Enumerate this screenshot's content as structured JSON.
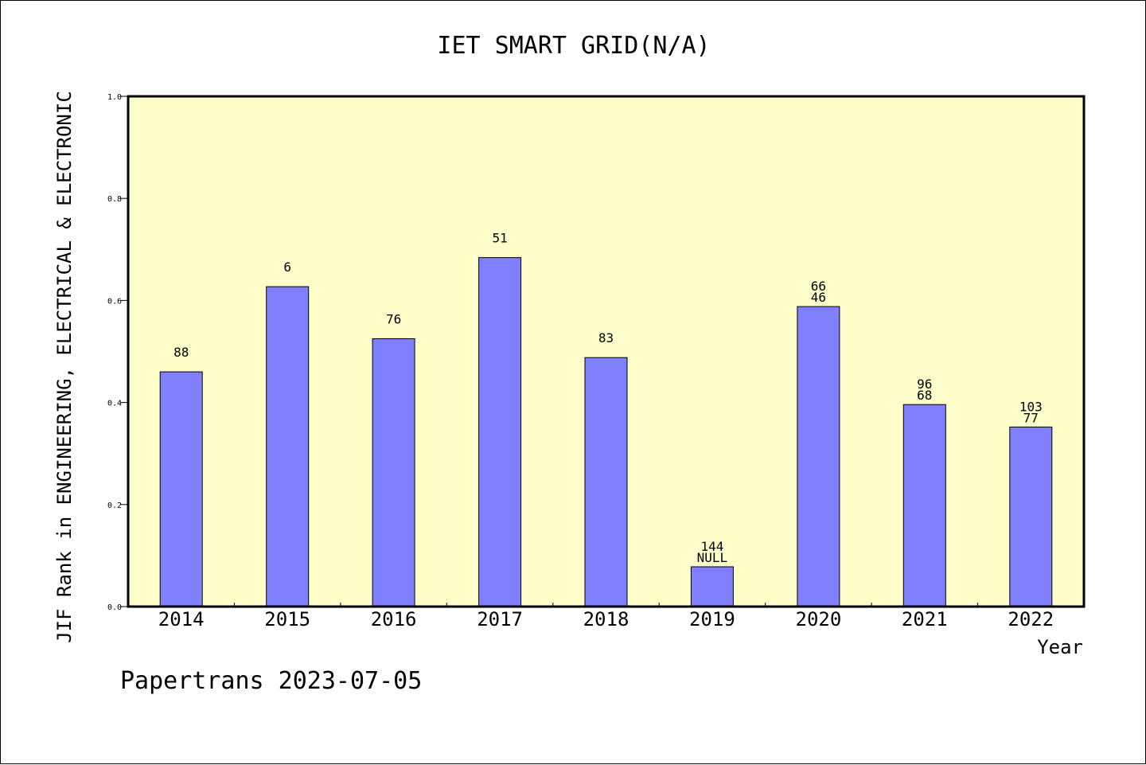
{
  "chart_data": {
    "type": "bar",
    "title": "IET SMART GRID(N/A)",
    "ylabel": "JIF Rank in ENGINEERING, ELECTRICAL & ELECTRONIC",
    "xlabel": "Year",
    "footer": "Papertrans 2023-07-05",
    "ylim": [
      0,
      1.0
    ],
    "yticks": [
      "0.0",
      "0.2",
      "0.4",
      "0.6",
      "0.8",
      "1.0"
    ],
    "ytick_values": [
      0,
      0.2,
      0.4,
      0.6,
      0.8,
      1.0
    ],
    "grid": false,
    "legend": "none",
    "categories": [
      "2014",
      "2015",
      "2016",
      "2017",
      "2018",
      "2019",
      "2020",
      "2021",
      "2022"
    ],
    "values": [
      0.46,
      0.627,
      0.525,
      0.684,
      0.488,
      0.078,
      0.588,
      0.396,
      0.352
    ],
    "labels": [
      [
        "88"
      ],
      [
        "6"
      ],
      [
        "76"
      ],
      [
        "51"
      ],
      [
        "83"
      ],
      [
        "144",
        "NULL"
      ],
      [
        "66",
        "46"
      ],
      [
        "96",
        "68"
      ],
      [
        "103",
        "77"
      ]
    ],
    "colors": {
      "plot_background": "#ffffcc",
      "bar_fill": "#8080ff",
      "bar_stroke": "#000000"
    }
  }
}
